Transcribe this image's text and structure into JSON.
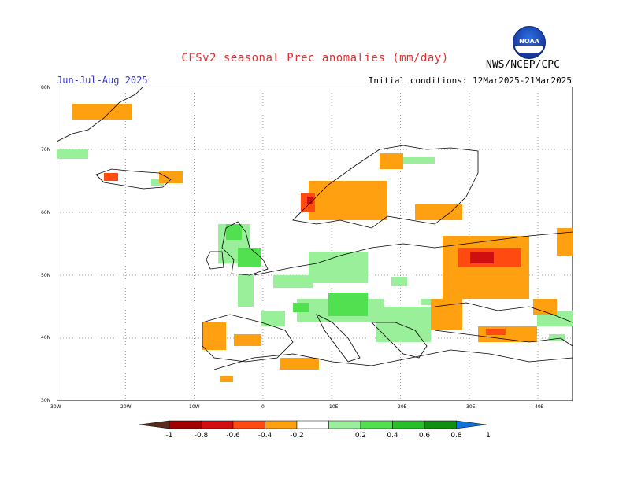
{
  "title": "CFSv2 seasonal Prec anomalies (mm/day)",
  "season": "Jun-Jul-Aug 2025",
  "initial_conditions": "Initial conditions: 12Mar2025-21Mar2025",
  "agency": "NWS/NCEP/CPC",
  "logo_text": "NOAA",
  "lat_labels": [
    "80N",
    "70N",
    "60N",
    "50N",
    "40N",
    "30N"
  ],
  "lon_labels": [
    "30W",
    "20W",
    "10W",
    "0",
    "10E",
    "20E",
    "30E",
    "40E"
  ],
  "colorbar": {
    "labels": [
      "-1",
      "-0.8",
      "-0.6",
      "-0.4",
      "-0.2",
      "0.2",
      "0.4",
      "0.6",
      "0.8",
      "1"
    ],
    "colors": [
      "#5a2a1a",
      "#a00000",
      "#d01010",
      "#ff4a10",
      "#ffa010",
      "#ffffff",
      "#9af09a",
      "#50e050",
      "#28c028",
      "#109010",
      "#1070e0"
    ]
  }
}
